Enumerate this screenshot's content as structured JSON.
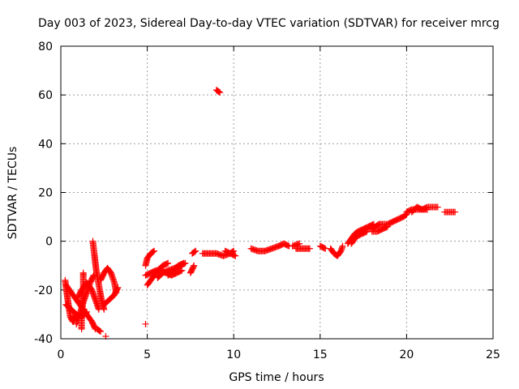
{
  "chart_data": {
    "type": "scatter",
    "title": "Day 003 of 2023, Sidereal Day-to-day VTEC variation (SDTVAR) for receiver mrcg",
    "xlabel": "GPS time / hours",
    "ylabel": "SDTVAR / TECUs",
    "xlim": [
      0,
      25
    ],
    "ylim": [
      -40,
      80
    ],
    "xticks": [
      0,
      5,
      10,
      15,
      20,
      25
    ],
    "yticks": [
      -40,
      -20,
      0,
      20,
      40,
      60,
      80
    ],
    "xtick_labels": [
      "0",
      "5",
      "10",
      "15",
      "20",
      "25"
    ],
    "ytick_labels": [
      "-40",
      "-20",
      "0",
      "20",
      "40",
      "60",
      "80"
    ],
    "grid": true,
    "marker": "+",
    "color": "#ff0000",
    "series": [
      {
        "name": "SDTVAR",
        "segments": [
          [
            [
              0.25,
              -16
            ],
            [
              0.4,
              -24
            ],
            [
              0.55,
              -31
            ],
            [
              0.7,
              -33
            ],
            [
              0.9,
              -30
            ]
          ],
          [
            [
              0.3,
              -18
            ],
            [
              0.6,
              -21
            ],
            [
              0.9,
              -24
            ],
            [
              1.2,
              -27
            ],
            [
              1.5,
              -30
            ],
            [
              1.8,
              -33
            ],
            [
              2.0,
              -36
            ]
          ],
          [
            [
              0.3,
              -26
            ],
            [
              0.6,
              -28
            ],
            [
              0.9,
              -30
            ],
            [
              1.2,
              -31
            ],
            [
              1.5,
              -29
            ]
          ],
          [
            [
              0.9,
              -34
            ],
            [
              1.1,
              -30
            ],
            [
              1.3,
              -25
            ],
            [
              1.5,
              -21
            ],
            [
              1.7,
              -17
            ],
            [
              1.9,
              -14
            ]
          ],
          [
            [
              1.0,
              -23
            ],
            [
              1.2,
              -20
            ],
            [
              1.5,
              -17
            ],
            [
              1.8,
              -20
            ],
            [
              2.0,
              -24
            ],
            [
              2.2,
              -28
            ]
          ],
          [
            [
              1.3,
              -13
            ],
            [
              1.3,
              -20
            ],
            [
              1.25,
              -27
            ],
            [
              1.2,
              -33
            ],
            [
              1.2,
              -36
            ]
          ],
          [
            [
              1.85,
              0
            ],
            [
              1.95,
              -6
            ],
            [
              2.05,
              -12
            ],
            [
              2.2,
              -18
            ],
            [
              2.35,
              -24
            ],
            [
              2.5,
              -28
            ]
          ],
          [
            [
              2.3,
              -16
            ],
            [
              2.5,
              -13
            ],
            [
              2.7,
              -11
            ],
            [
              2.9,
              -13
            ],
            [
              3.1,
              -17
            ],
            [
              3.2,
              -21
            ]
          ],
          [
            [
              2.5,
              -26
            ],
            [
              2.8,
              -24
            ],
            [
              3.1,
              -22
            ],
            [
              3.3,
              -19
            ]
          ],
          [
            [
              2.1,
              -36
            ],
            [
              2.3,
              -37
            ]
          ],
          [
            [
              2.6,
              -39
            ]
          ],
          [
            [
              4.9,
              -34
            ]
          ],
          [
            [
              4.9,
              -10
            ],
            [
              5.0,
              -7
            ],
            [
              5.2,
              -5
            ],
            [
              5.4,
              -4
            ]
          ],
          [
            [
              4.9,
              -14
            ],
            [
              5.2,
              -13
            ],
            [
              5.5,
              -12
            ],
            [
              5.8,
              -12
            ],
            [
              6.1,
              -13
            ],
            [
              6.4,
              -14
            ],
            [
              6.7,
              -13
            ],
            [
              7.0,
              -12
            ]
          ],
          [
            [
              5.0,
              -18
            ],
            [
              5.3,
              -15
            ],
            [
              5.6,
              -12
            ],
            [
              5.9,
              -10
            ],
            [
              6.2,
              -9
            ]
          ],
          [
            [
              5.6,
              -15
            ],
            [
              5.9,
              -13
            ],
            [
              6.2,
              -12
            ],
            [
              6.6,
              -11
            ],
            [
              6.9,
              -10
            ],
            [
              7.2,
              -9
            ]
          ],
          [
            [
              6.2,
              -14
            ],
            [
              6.5,
              -12
            ],
            [
              6.8,
              -10
            ],
            [
              7.1,
              -9
            ]
          ],
          [
            [
              7.5,
              -13
            ],
            [
              7.7,
              -10
            ]
          ],
          [
            [
              7.6,
              -5
            ],
            [
              7.8,
              -4
            ]
          ],
          [
            [
              8.2,
              -5
            ],
            [
              8.6,
              -5
            ],
            [
              9.0,
              -5
            ],
            [
              9.4,
              -6
            ],
            [
              9.8,
              -5
            ],
            [
              10.0,
              -4
            ]
          ],
          [
            [
              9.5,
              -4
            ],
            [
              9.8,
              -5
            ],
            [
              10.1,
              -6
            ]
          ],
          [
            [
              9.0,
              62
            ],
            [
              9.2,
              61
            ]
          ],
          [
            [
              11.0,
              -3
            ],
            [
              11.4,
              -4
            ],
            [
              11.8,
              -4
            ],
            [
              12.2,
              -3
            ],
            [
              12.6,
              -2
            ],
            [
              12.9,
              -1
            ],
            [
              13.2,
              -2
            ]
          ],
          [
            [
              13.6,
              -3
            ],
            [
              14.0,
              -3
            ],
            [
              14.4,
              -3
            ]
          ],
          [
            [
              13.4,
              -2
            ],
            [
              13.8,
              -1
            ]
          ],
          [
            [
              15.0,
              -2
            ],
            [
              15.3,
              -3
            ]
          ],
          [
            [
              15.6,
              -3
            ],
            [
              15.8,
              -5
            ],
            [
              16.0,
              -6
            ],
            [
              16.2,
              -4
            ],
            [
              16.3,
              -2
            ]
          ],
          [
            [
              16.6,
              -1
            ],
            [
              16.8,
              1
            ],
            [
              17.0,
              3
            ],
            [
              17.2,
              4
            ],
            [
              17.5,
              5
            ],
            [
              17.8,
              6
            ],
            [
              18.1,
              7
            ]
          ],
          [
            [
              16.8,
              -1
            ],
            [
              17.1,
              2
            ],
            [
              17.4,
              3
            ],
            [
              17.7,
              4
            ]
          ],
          [
            [
              17.7,
              5
            ],
            [
              18.0,
              5
            ],
            [
              18.2,
              6
            ],
            [
              18.4,
              7
            ],
            [
              18.6,
              7
            ],
            [
              18.9,
              7
            ],
            [
              19.2,
              8
            ],
            [
              19.5,
              9
            ],
            [
              19.8,
              10
            ],
            [
              20.0,
              11
            ]
          ],
          [
            [
              18.0,
              4
            ],
            [
              18.3,
              4
            ],
            [
              18.6,
              5
            ],
            [
              18.9,
              6
            ]
          ],
          [
            [
              20.0,
              12
            ],
            [
              20.3,
              13
            ],
            [
              20.6,
              13
            ],
            [
              20.9,
              13
            ],
            [
              21.2,
              14
            ],
            [
              21.5,
              14
            ],
            [
              21.8,
              14
            ]
          ],
          [
            [
              20.3,
              12
            ],
            [
              20.6,
              14
            ],
            [
              20.9,
              13
            ],
            [
              21.2,
              13
            ]
          ],
          [
            [
              22.2,
              12
            ],
            [
              22.5,
              12
            ],
            [
              22.8,
              12
            ]
          ]
        ]
      }
    ]
  }
}
